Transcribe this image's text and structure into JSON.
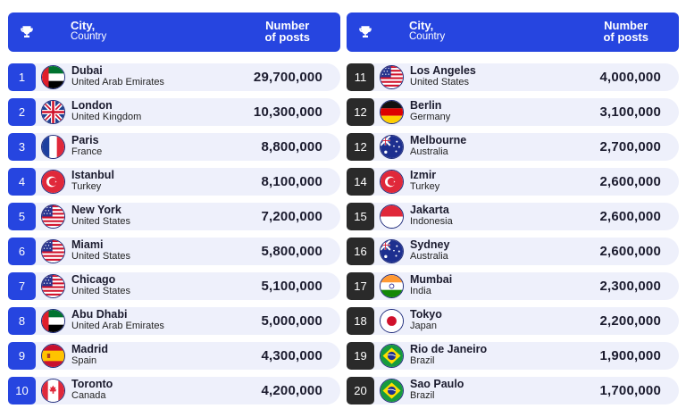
{
  "header": {
    "city_label": "City,",
    "country_label": "Country",
    "posts_line1": "Number",
    "posts_line2": "of posts",
    "icon": "trophy-icon"
  },
  "colors": {
    "header_bg": "#2645e0",
    "rank_left": "#2645e0",
    "rank_right": "#2a2a2a",
    "row_bg": "#eef0fb"
  },
  "left": [
    {
      "rank": "1",
      "city": "Dubai",
      "country": "United Arab Emirates",
      "posts": "29,700,000",
      "flag": "uae"
    },
    {
      "rank": "2",
      "city": "London",
      "country": "United Kingdom",
      "posts": "10,300,000",
      "flag": "uk"
    },
    {
      "rank": "3",
      "city": "Paris",
      "country": "France",
      "posts": "8,800,000",
      "flag": "france"
    },
    {
      "rank": "4",
      "city": "Istanbul",
      "country": "Turkey",
      "posts": "8,100,000",
      "flag": "turkey"
    },
    {
      "rank": "5",
      "city": "New York",
      "country": "United States",
      "posts": "7,200,000",
      "flag": "usa"
    },
    {
      "rank": "6",
      "city": "Miami",
      "country": "United States",
      "posts": "5,800,000",
      "flag": "usa"
    },
    {
      "rank": "7",
      "city": "Chicago",
      "country": "United States",
      "posts": "5,100,000",
      "flag": "usa"
    },
    {
      "rank": "8",
      "city": "Abu Dhabi",
      "country": "United Arab Emirates",
      "posts": "5,000,000",
      "flag": "uae"
    },
    {
      "rank": "9",
      "city": "Madrid",
      "country": "Spain",
      "posts": "4,300,000",
      "flag": "spain"
    },
    {
      "rank": "10",
      "city": "Toronto",
      "country": "Canada",
      "posts": "4,200,000",
      "flag": "canada"
    }
  ],
  "right": [
    {
      "rank": "11",
      "city": "Los Angeles",
      "country": "United States",
      "posts": "4,000,000",
      "flag": "usa"
    },
    {
      "rank": "12",
      "city": "Berlin",
      "country": "Germany",
      "posts": "3,100,000",
      "flag": "germany"
    },
    {
      "rank": "12",
      "city": "Melbourne",
      "country": "Australia",
      "posts": "2,700,000",
      "flag": "australia"
    },
    {
      "rank": "14",
      "city": "Izmir",
      "country": "Turkey",
      "posts": "2,600,000",
      "flag": "turkey"
    },
    {
      "rank": "15",
      "city": "Jakarta",
      "country": "Indonesia",
      "posts": "2,600,000",
      "flag": "indonesia"
    },
    {
      "rank": "16",
      "city": "Sydney",
      "country": "Australia",
      "posts": "2,600,000",
      "flag": "australia"
    },
    {
      "rank": "17",
      "city": "Mumbai",
      "country": "India",
      "posts": "2,300,000",
      "flag": "india"
    },
    {
      "rank": "18",
      "city": "Tokyo",
      "country": "Japan",
      "posts": "2,200,000",
      "flag": "japan"
    },
    {
      "rank": "19",
      "city": "Rio de Janeiro",
      "country": "Brazil",
      "posts": "1,900,000",
      "flag": "brazil"
    },
    {
      "rank": "20",
      "city": "Sao Paulo",
      "country": "Brazil",
      "posts": "1,700,000",
      "flag": "brazil"
    }
  ]
}
